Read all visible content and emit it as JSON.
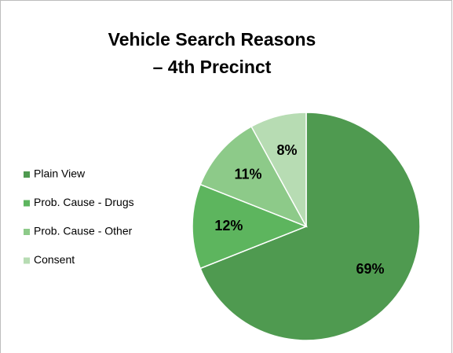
{
  "chart_data": {
    "type": "pie",
    "title": [
      "Vehicle Search Reasons",
      "– 4th Precinct"
    ],
    "categories": [
      "Plain View",
      "Prob. Cause - Drugs",
      "Prob. Cause - Other",
      "Consent"
    ],
    "values": [
      69,
      12,
      11,
      8
    ],
    "value_labels": [
      "69%",
      "12%",
      "11%",
      "8%"
    ],
    "colors": [
      "#4f9a50",
      "#5db55e",
      "#8dca89",
      "#b7dcb3"
    ],
    "legend": "left"
  }
}
